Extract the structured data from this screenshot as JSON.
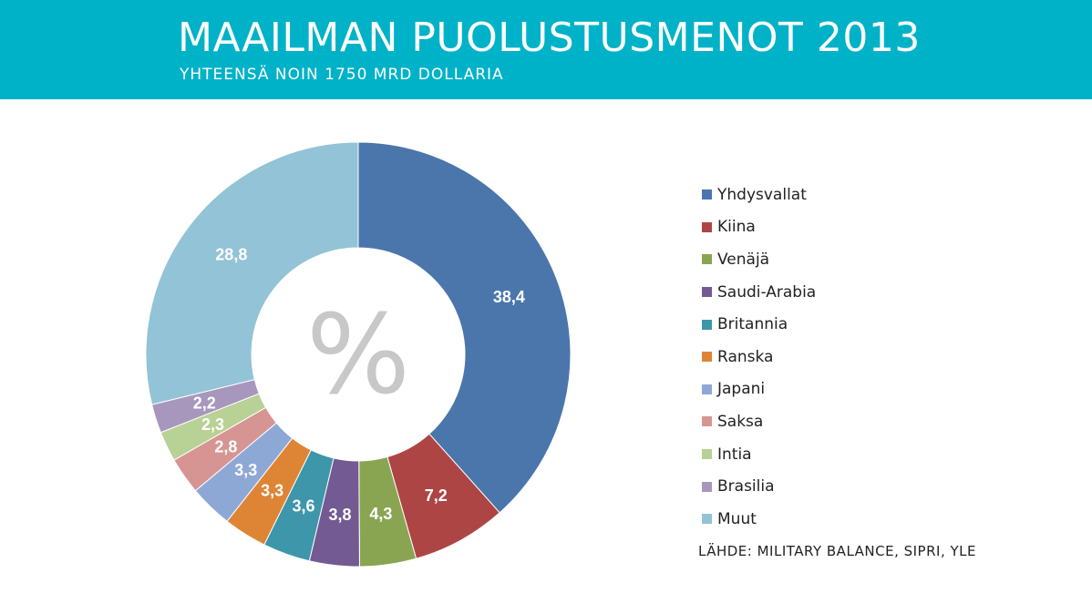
{
  "header": {
    "title": "MAAILMAN PUOLUSTUSMENOT 2013",
    "subtitle": "YHTEENSÄ NOIN 1750 MRD DOLLARIA",
    "background_color": "#00b2c8"
  },
  "chart_data": {
    "type": "pie",
    "donut": true,
    "center_label": "%",
    "title": "MAAILMAN PUOLUSTUSMENOT 2013",
    "legend_position": "right",
    "slices": [
      {
        "label": "Yhdysvallat",
        "value": 38.4,
        "display": "38,4",
        "color": "#4a76ab"
      },
      {
        "label": "Kiina",
        "value": 7.2,
        "display": "7,2",
        "color": "#ae4545"
      },
      {
        "label": "Venäjä",
        "value": 4.3,
        "display": "4,3",
        "color": "#89a552"
      },
      {
        "label": "Saudi-Arabia",
        "value": 3.8,
        "display": "3,8",
        "color": "#735a93"
      },
      {
        "label": "Britannia",
        "value": 3.6,
        "display": "3,6",
        "color": "#3d96aa"
      },
      {
        "label": "Ranska",
        "value": 3.3,
        "display": "3,3",
        "color": "#de8535"
      },
      {
        "label": "Japani",
        "value": 3.3,
        "display": "3,3",
        "color": "#8ea8d6"
      },
      {
        "label": "Saksa",
        "value": 2.8,
        "display": "2,8",
        "color": "#d69593"
      },
      {
        "label": "Intia",
        "value": 2.3,
        "display": "2,3",
        "color": "#b8d194"
      },
      {
        "label": "Brasilia",
        "value": 2.2,
        "display": "2,2",
        "color": "#a797bd"
      },
      {
        "label": "Muut",
        "value": 28.8,
        "display": "28,8",
        "color": "#92c3d6"
      }
    ]
  },
  "source": "LÄHDE: MILITARY BALANCE, SIPRI, YLE"
}
